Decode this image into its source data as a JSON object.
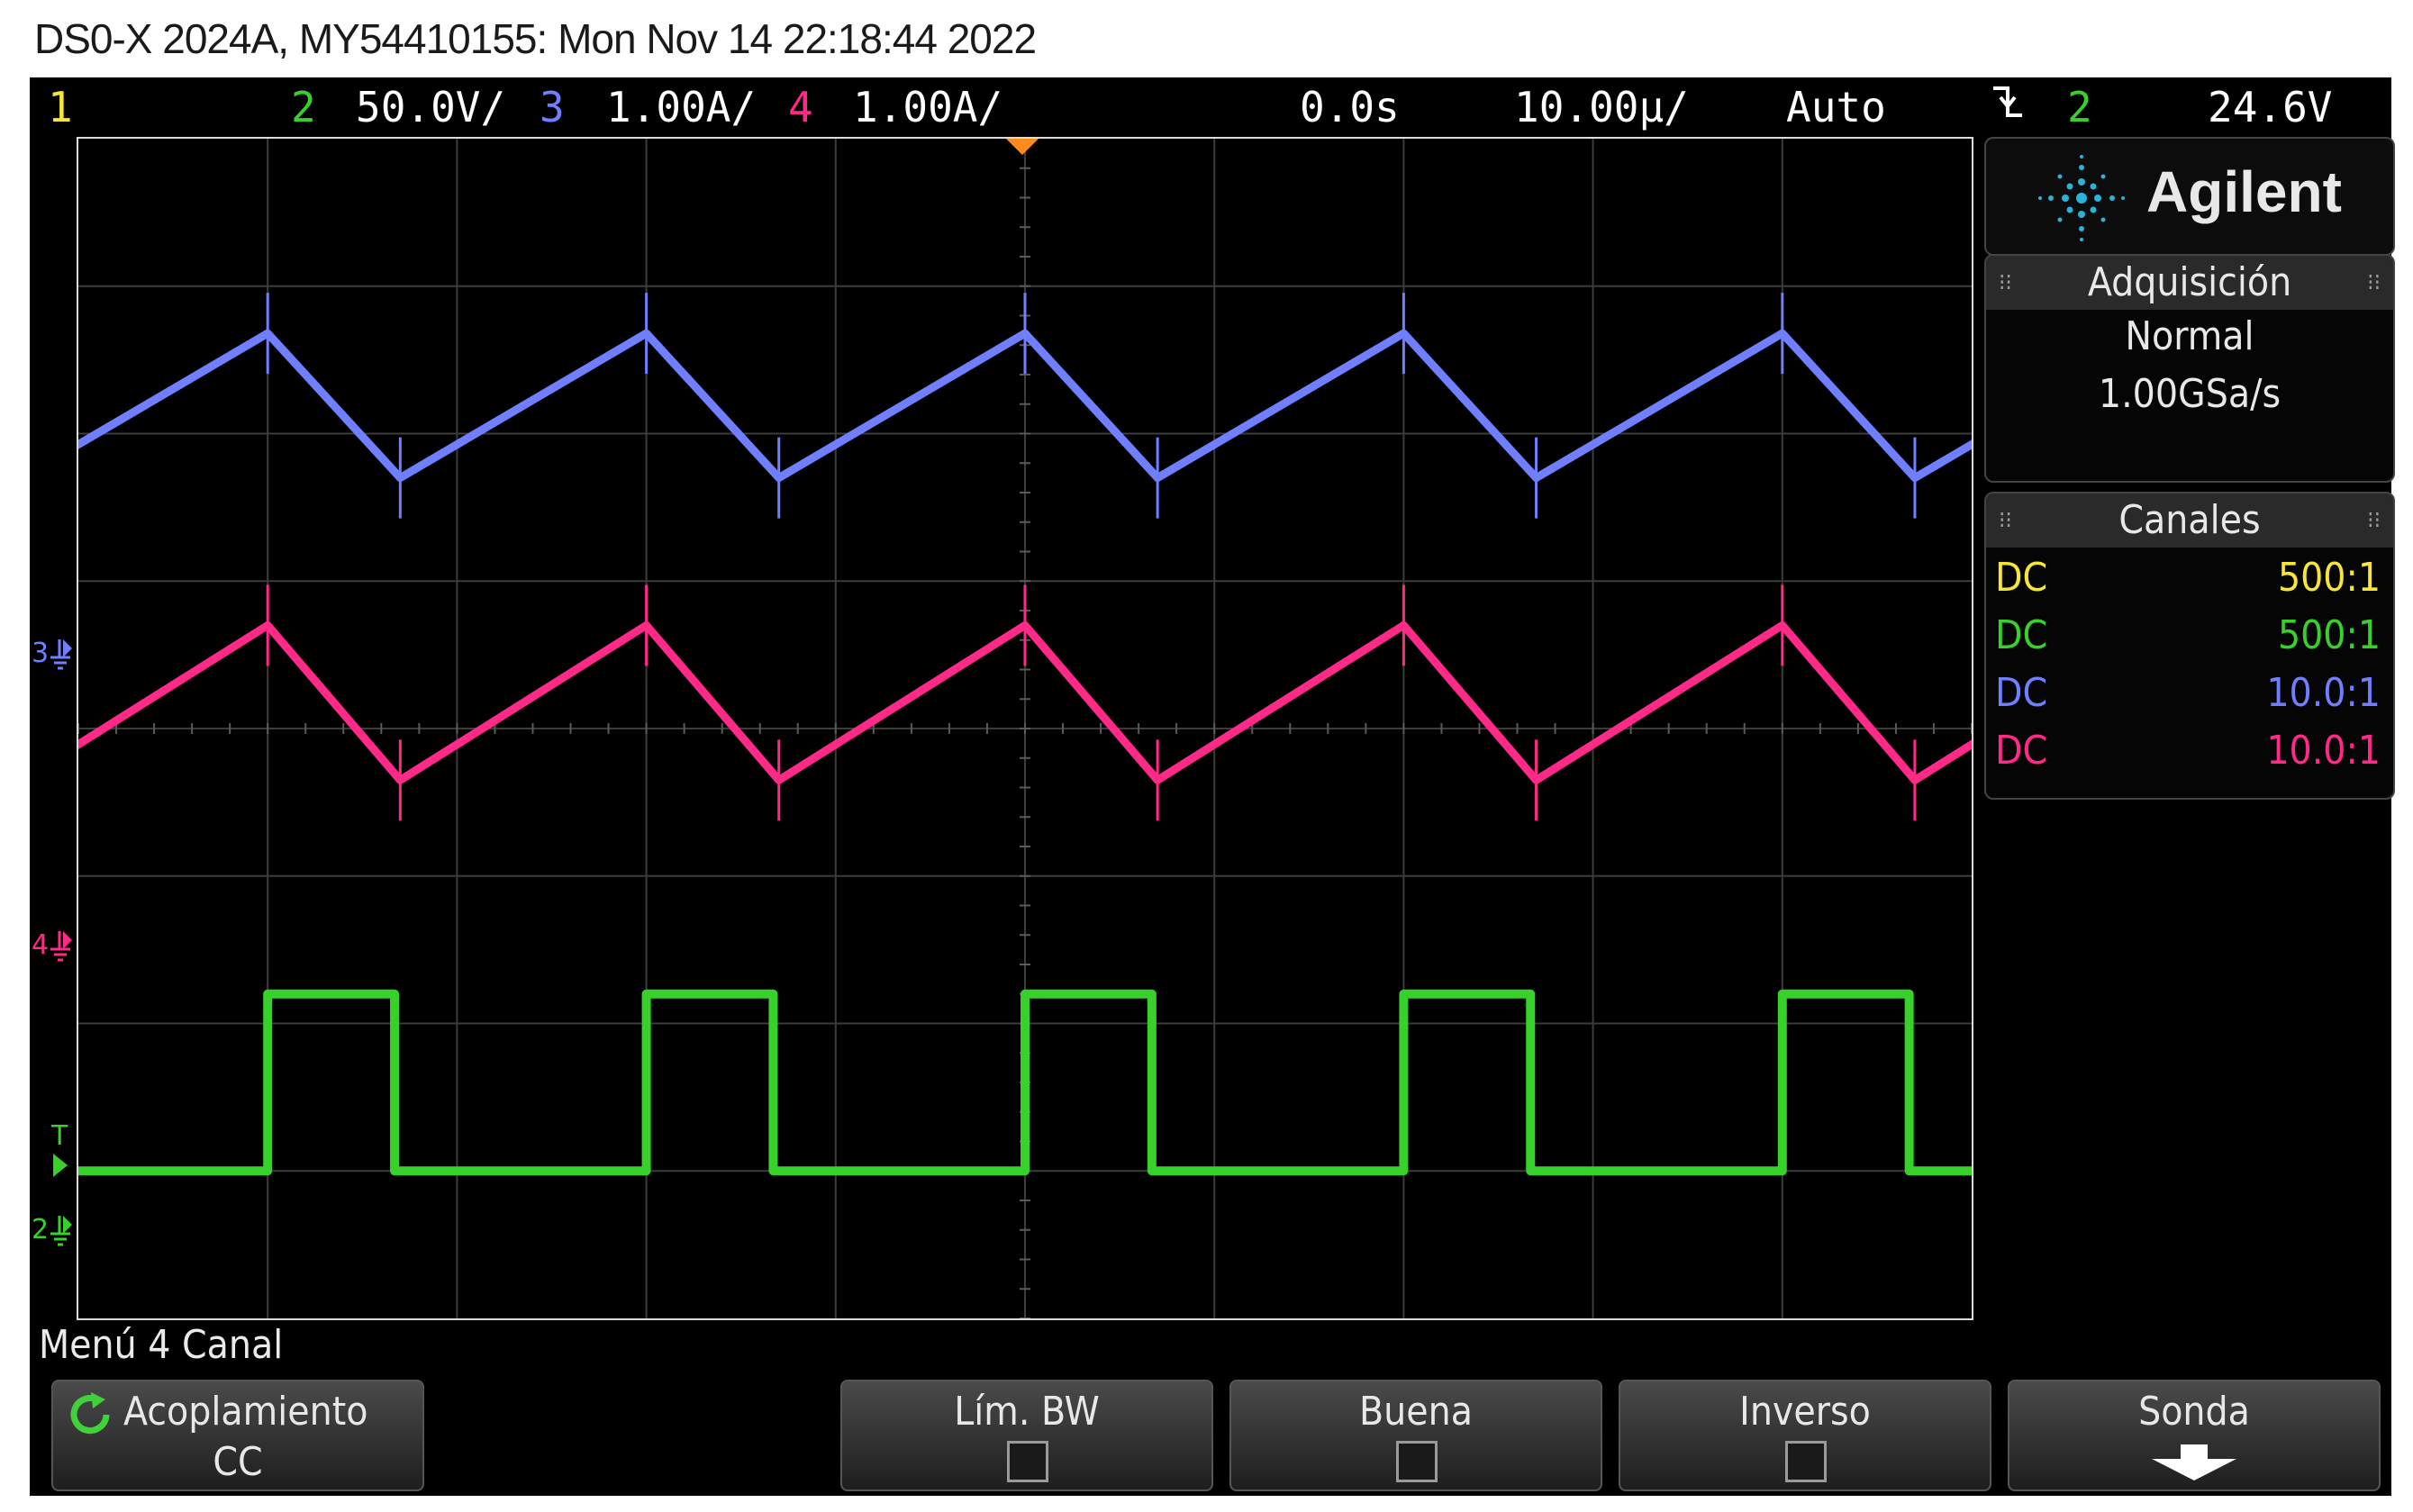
{
  "window": {
    "title": "DS0-X 2024A, MY54410155: Mon Nov 14 22:18:44 2022"
  },
  "topbar": {
    "ch1_num": "1",
    "ch2_num": "2",
    "ch2_scale": "50.0V/",
    "ch3_num": "3",
    "ch3_scale": "1.00A/",
    "ch4_num": "4",
    "ch4_scale": "1.00A/",
    "time_delay": "0.0s",
    "time_scale": "10.00µ/",
    "trigger_mode": "Auto",
    "trigger_slope_icon": "falling-edge-icon",
    "trigger_source": "2",
    "trigger_level": "24.6V"
  },
  "colors": {
    "ch1": "#f7e635",
    "ch2": "#38d02a",
    "ch3": "#6f7fff",
    "ch4": "#ff2a87",
    "grid": "#3c3c3c",
    "trigger_marker": "#ff8c1a"
  },
  "markers": {
    "ch3_ground": "3",
    "ch4_ground": "4",
    "ch2_ground": "2",
    "trigger": "T"
  },
  "sidebar": {
    "brand": "Agilent",
    "acquisition": {
      "header": "Adquisición",
      "mode": "Normal",
      "sample_rate": "1.00GSa/s"
    },
    "channels": {
      "header": "Canales",
      "rows": [
        {
          "coupling": "DC",
          "probe": "500:1"
        },
        {
          "coupling": "DC",
          "probe": "500:1"
        },
        {
          "coupling": "DC",
          "probe": "10.0:1"
        },
        {
          "coupling": "DC",
          "probe": "10.0:1"
        }
      ]
    }
  },
  "menu": {
    "title": "Menú 4 Canal",
    "softkeys": {
      "coupling_label": "Acoplamiento",
      "coupling_value": "CC",
      "bw_limit": "Lím. BW",
      "fine": "Buena",
      "invert": "Inverso",
      "probe": "Sonda"
    }
  },
  "chart_data": {
    "type": "line",
    "x_divisions": 10,
    "y_divisions": 8,
    "time_per_div": "10.00µs",
    "period_divisions": 2.0,
    "series": [
      {
        "name": "3",
        "shape": "sawtooth",
        "rise_start_div": 0.0,
        "peak_div": 1.0,
        "valley_div": 1.7,
        "level_high_div": 6.68,
        "level_low_div": 5.7
      },
      {
        "name": "4",
        "shape": "sawtooth",
        "rise_start_div": 0.0,
        "peak_div": 1.0,
        "valley_div": 1.7,
        "level_high_div": 4.7,
        "level_low_div": 3.65
      },
      {
        "name": "2",
        "shape": "square",
        "high_start_div": 1.0,
        "high_end_div": 1.67,
        "level_high_div": 2.2,
        "level_low_div": 1.0
      }
    ]
  }
}
